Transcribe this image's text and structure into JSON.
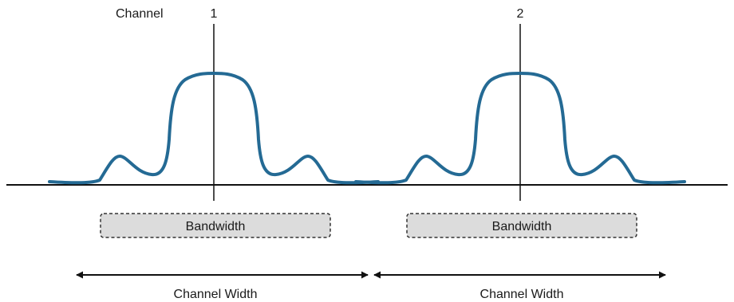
{
  "header": {
    "channel_label": "Channel"
  },
  "channels": [
    {
      "number": "1",
      "bandwidth_label": "Bandwidth",
      "width_label": "Channel Width"
    },
    {
      "number": "2",
      "bandwidth_label": "Bandwidth",
      "width_label": "Channel Width"
    }
  ],
  "colors": {
    "signal": "#246a94",
    "bandwidth_fill": "#dcdcdc",
    "line": "#111111"
  }
}
